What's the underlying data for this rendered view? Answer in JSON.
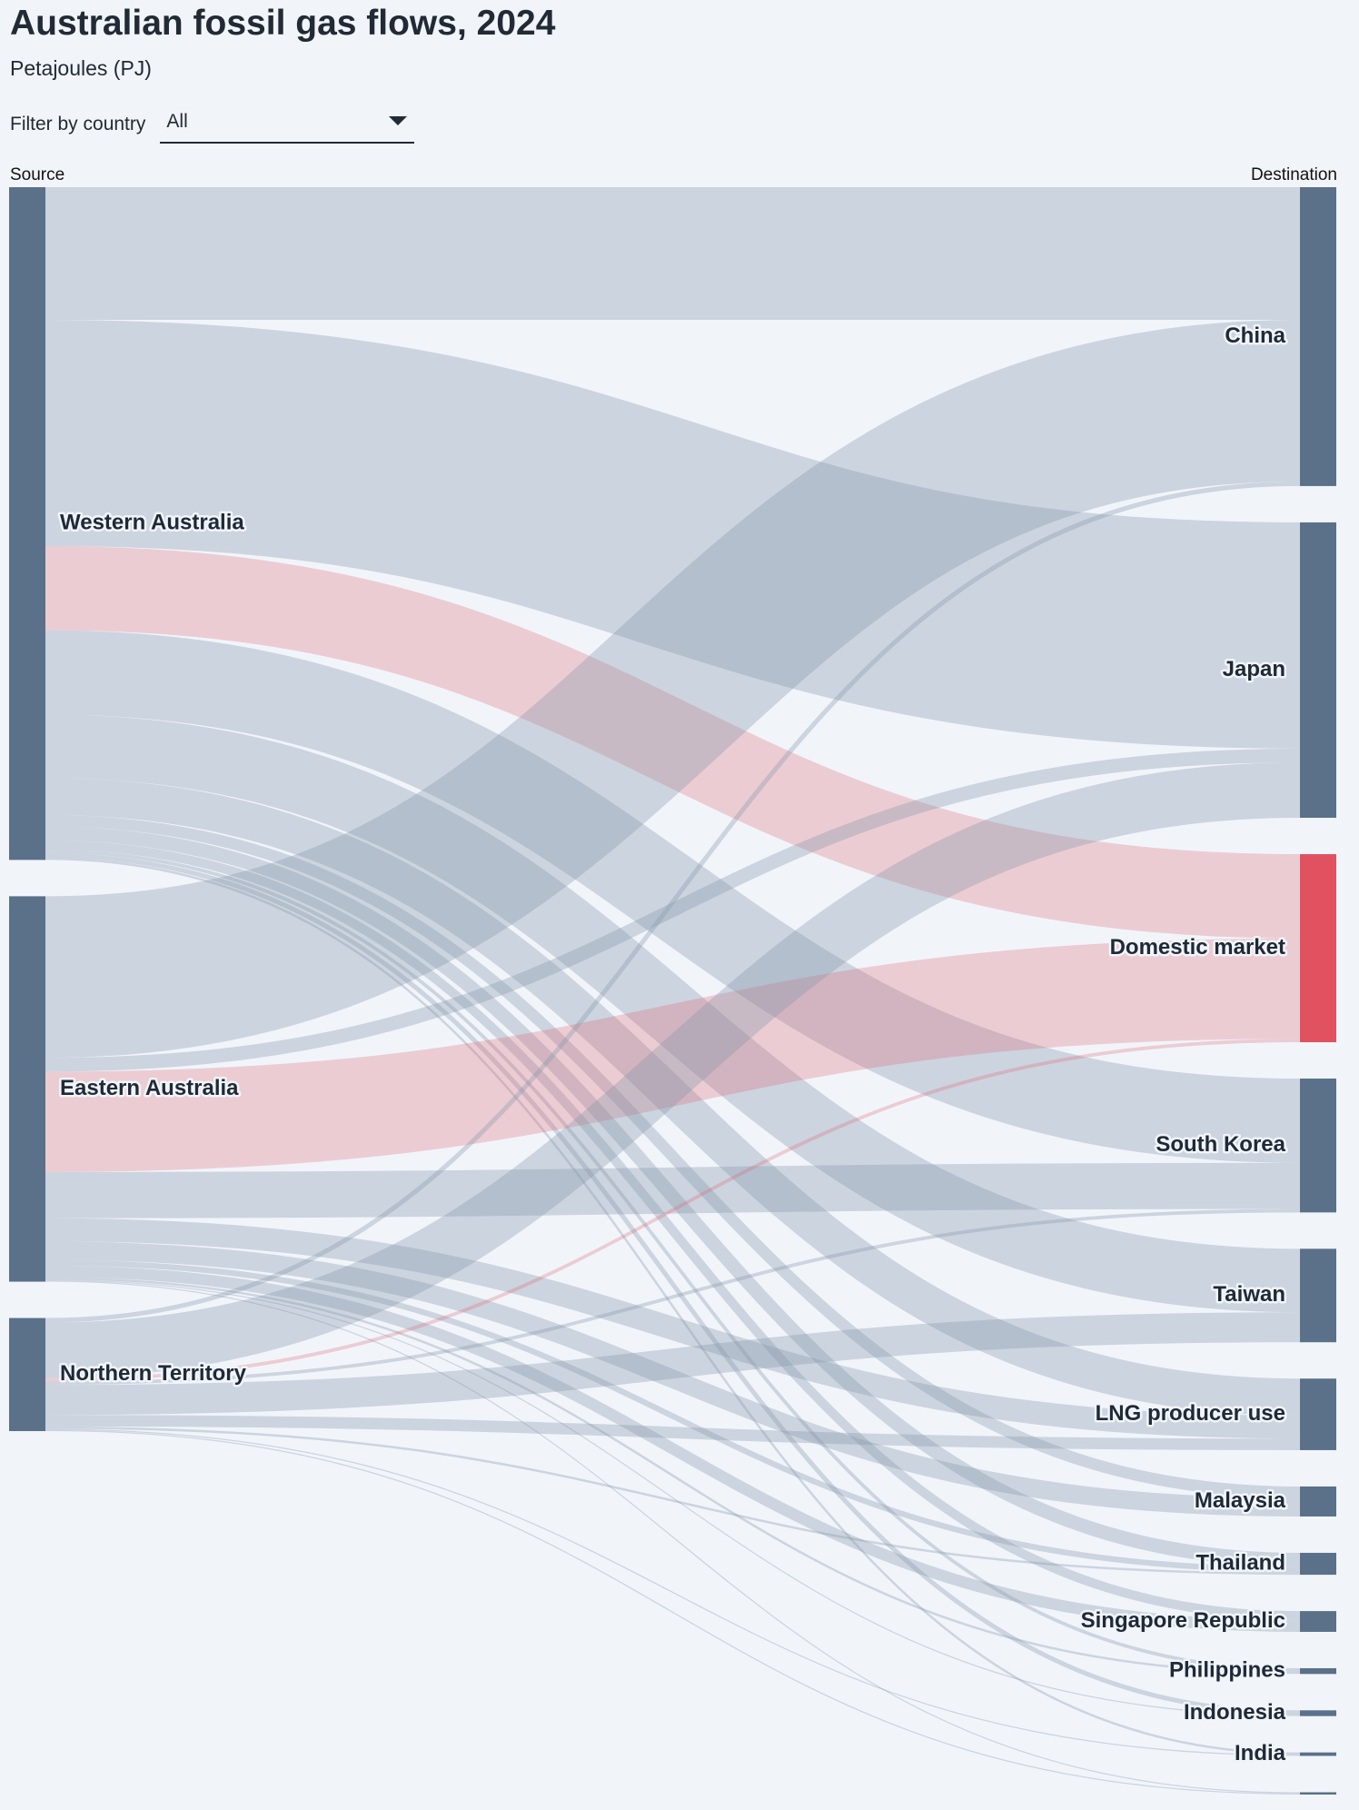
{
  "header": {
    "title": "Australian fossil gas flows, 2024",
    "subtitle": "Petajoules (PJ)"
  },
  "filter": {
    "label": "Filter by country",
    "selected": "All"
  },
  "colors": {
    "background": "#f1f5fa",
    "node": "#5b7089",
    "domestic_node": "#e05260",
    "link": "#8899ad",
    "domestic_link": "#e05260"
  },
  "chart_data": {
    "type": "sankey",
    "units": "PJ",
    "source_heading": "Source",
    "destination_heading": "Destination",
    "sources": [
      "Western Australia",
      "Eastern Australia",
      "Northern Territory"
    ],
    "destinations": [
      "China",
      "Japan",
      "Domestic market",
      "South Korea",
      "Taiwan",
      "LNG producer use",
      "Malaysia",
      "Thailand",
      "Singapore Republic",
      "Philippines",
      "Indonesia",
      "India",
      ""
    ],
    "links": [
      {
        "source": "Western Australia",
        "target": "China",
        "value": 575
      },
      {
        "source": "Western Australia",
        "target": "Japan",
        "value": 980
      },
      {
        "source": "Western Australia",
        "target": "Domestic market",
        "value": 365
      },
      {
        "source": "Western Australia",
        "target": "South Korea",
        "value": 365
      },
      {
        "source": "Western Australia",
        "target": "Taiwan",
        "value": 275
      },
      {
        "source": "Western Australia",
        "target": "LNG producer use",
        "value": 160
      },
      {
        "source": "Western Australia",
        "target": "Malaysia",
        "value": 50
      },
      {
        "source": "Western Australia",
        "target": "Thailand",
        "value": 60
      },
      {
        "source": "Western Australia",
        "target": "Singapore Republic",
        "value": 40
      },
      {
        "source": "Western Australia",
        "target": "Philippines",
        "value": 15
      },
      {
        "source": "Western Australia",
        "target": "Indonesia",
        "value": 20
      },
      {
        "source": "Western Australia",
        "target": "India",
        "value": 10
      },
      {
        "source": "Eastern Australia",
        "target": "China",
        "value": 700
      },
      {
        "source": "Eastern Australia",
        "target": "Japan",
        "value": 60
      },
      {
        "source": "Eastern Australia",
        "target": "Domestic market",
        "value": 435
      },
      {
        "source": "Eastern Australia",
        "target": "South Korea",
        "value": 200
      },
      {
        "source": "Eastern Australia",
        "target": "LNG producer use",
        "value": 100
      },
      {
        "source": "Eastern Australia",
        "target": "Malaysia",
        "value": 80
      },
      {
        "source": "Eastern Australia",
        "target": "Thailand",
        "value": 25
      },
      {
        "source": "Eastern Australia",
        "target": "Singapore Republic",
        "value": 50
      },
      {
        "source": "Eastern Australia",
        "target": "Philippines",
        "value": 10
      },
      {
        "source": "Eastern Australia",
        "target": "Indonesia",
        "value": 5
      },
      {
        "source": "Eastern Australia",
        "target": "",
        "value": 5
      },
      {
        "source": "Northern Territory",
        "target": "China",
        "value": 20
      },
      {
        "source": "Northern Territory",
        "target": "Japan",
        "value": 240
      },
      {
        "source": "Northern Territory",
        "target": "Domestic market",
        "value": 15
      },
      {
        "source": "Northern Territory",
        "target": "South Korea",
        "value": 15
      },
      {
        "source": "Northern Territory",
        "target": "Taiwan",
        "value": 130
      },
      {
        "source": "Northern Territory",
        "target": "LNG producer use",
        "value": 50
      },
      {
        "source": "Northern Territory",
        "target": "Thailand",
        "value": 10
      },
      {
        "source": "Northern Territory",
        "target": "India",
        "value": 5
      },
      {
        "source": "Northern Territory",
        "target": "",
        "value": 5
      }
    ]
  }
}
